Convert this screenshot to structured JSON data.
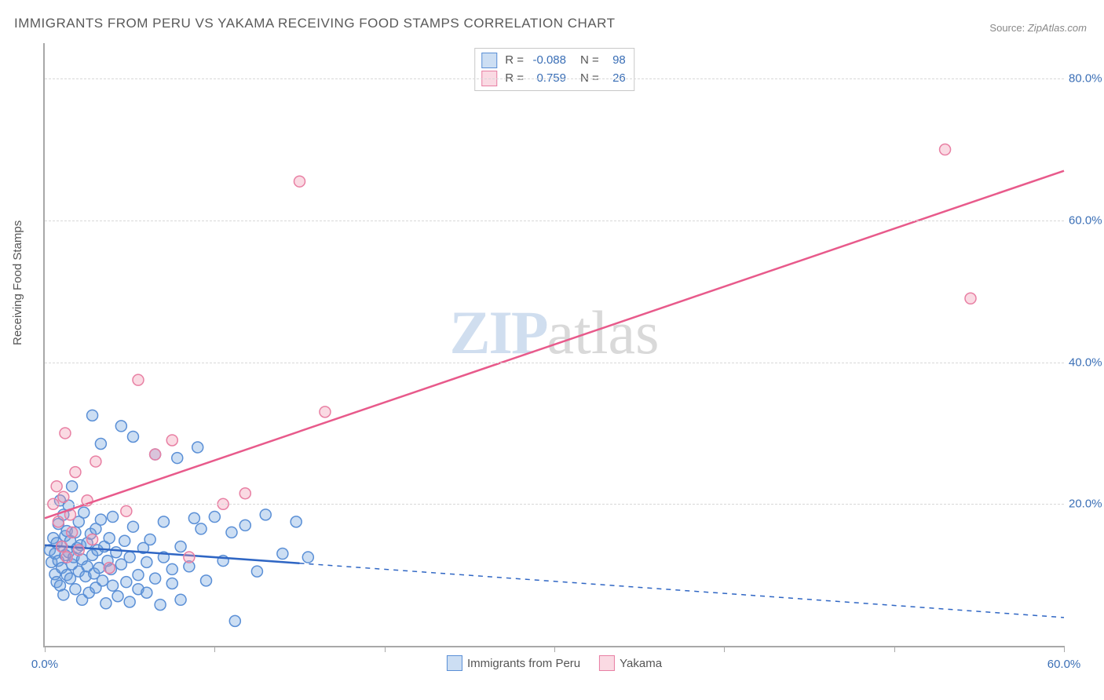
{
  "title": "IMMIGRANTS FROM PERU VS YAKAMA RECEIVING FOOD STAMPS CORRELATION CHART",
  "source_label": "Source:",
  "source_value": "ZipAtlas.com",
  "ylabel": "Receiving Food Stamps",
  "watermark": {
    "part1": "ZIP",
    "part2": "atlas"
  },
  "chart": {
    "type": "scatter",
    "background_color": "#ffffff",
    "grid_color": "#d8d8d8",
    "axis_color": "#a8a8a8",
    "tick_label_color": "#3b6fb6",
    "xlim": [
      0,
      60
    ],
    "ylim": [
      0,
      85
    ],
    "x_ticks": [
      0,
      10,
      20,
      30,
      40,
      50,
      60
    ],
    "x_tick_labels": [
      "0.0%",
      "",
      "",
      "",
      "",
      "",
      "60.0%"
    ],
    "y_ticks": [
      20,
      40,
      60,
      80
    ],
    "y_tick_labels": [
      "20.0%",
      "40.0%",
      "60.0%",
      "80.0%"
    ],
    "marker_radius": 7,
    "marker_stroke_width": 1.5,
    "line_width": 2.5,
    "series": [
      {
        "name": "Immigrants from Peru",
        "abbrev": "peru",
        "color_fill": "rgba(110,160,220,0.35)",
        "color_stroke": "#5a8fd6",
        "line_color": "#2f66c4",
        "r": "-0.088",
        "n": "98",
        "trend": {
          "x1": 0,
          "y1": 14.2,
          "x2": 60,
          "y2": 4.0,
          "solid_until_x": 15
        },
        "points": [
          [
            0.3,
            13.5
          ],
          [
            0.4,
            11.8
          ],
          [
            0.5,
            15.2
          ],
          [
            0.6,
            10.1
          ],
          [
            0.6,
            13.0
          ],
          [
            0.7,
            9.0
          ],
          [
            0.7,
            14.5
          ],
          [
            0.8,
            17.2
          ],
          [
            0.8,
            12.0
          ],
          [
            0.9,
            20.5
          ],
          [
            0.9,
            8.5
          ],
          [
            1.0,
            14.0
          ],
          [
            1.0,
            11.0
          ],
          [
            1.1,
            18.5
          ],
          [
            1.1,
            7.2
          ],
          [
            1.2,
            15.5
          ],
          [
            1.2,
            12.8
          ],
          [
            1.3,
            10.0
          ],
          [
            1.3,
            16.2
          ],
          [
            1.4,
            13.2
          ],
          [
            1.4,
            19.8
          ],
          [
            1.5,
            9.5
          ],
          [
            1.5,
            14.8
          ],
          [
            1.6,
            11.5
          ],
          [
            1.6,
            22.5
          ],
          [
            1.7,
            12.5
          ],
          [
            1.8,
            16.0
          ],
          [
            1.8,
            8.0
          ],
          [
            1.9,
            13.8
          ],
          [
            2.0,
            10.5
          ],
          [
            2.0,
            17.5
          ],
          [
            2.1,
            14.2
          ],
          [
            2.2,
            6.5
          ],
          [
            2.2,
            12.2
          ],
          [
            2.3,
            18.8
          ],
          [
            2.4,
            9.8
          ],
          [
            2.5,
            14.5
          ],
          [
            2.5,
            11.2
          ],
          [
            2.6,
            7.5
          ],
          [
            2.7,
            15.8
          ],
          [
            2.8,
            12.8
          ],
          [
            2.8,
            32.5
          ],
          [
            2.9,
            10.2
          ],
          [
            3.0,
            16.5
          ],
          [
            3.0,
            8.2
          ],
          [
            3.1,
            13.5
          ],
          [
            3.2,
            11.0
          ],
          [
            3.3,
            17.8
          ],
          [
            3.3,
            28.5
          ],
          [
            3.4,
            9.2
          ],
          [
            3.5,
            14.0
          ],
          [
            3.6,
            6.0
          ],
          [
            3.7,
            12.0
          ],
          [
            3.8,
            15.2
          ],
          [
            3.9,
            10.8
          ],
          [
            4.0,
            8.5
          ],
          [
            4.0,
            18.2
          ],
          [
            4.2,
            13.2
          ],
          [
            4.3,
            7.0
          ],
          [
            4.5,
            11.5
          ],
          [
            4.5,
            31.0
          ],
          [
            4.7,
            14.8
          ],
          [
            4.8,
            9.0
          ],
          [
            5.0,
            6.2
          ],
          [
            5.0,
            12.5
          ],
          [
            5.2,
            16.8
          ],
          [
            5.2,
            29.5
          ],
          [
            5.5,
            10.0
          ],
          [
            5.5,
            8.0
          ],
          [
            5.8,
            13.8
          ],
          [
            6.0,
            7.5
          ],
          [
            6.0,
            11.8
          ],
          [
            6.2,
            15.0
          ],
          [
            6.5,
            9.5
          ],
          [
            6.5,
            27.0
          ],
          [
            6.8,
            5.8
          ],
          [
            7.0,
            12.5
          ],
          [
            7.0,
            17.5
          ],
          [
            7.5,
            10.8
          ],
          [
            7.5,
            8.8
          ],
          [
            7.8,
            26.5
          ],
          [
            8.0,
            14.0
          ],
          [
            8.0,
            6.5
          ],
          [
            8.5,
            11.2
          ],
          [
            8.8,
            18.0
          ],
          [
            9.0,
            28.0
          ],
          [
            9.2,
            16.5
          ],
          [
            9.5,
            9.2
          ],
          [
            10.0,
            18.2
          ],
          [
            10.5,
            12.0
          ],
          [
            11.0,
            16.0
          ],
          [
            11.2,
            3.5
          ],
          [
            11.8,
            17.0
          ],
          [
            12.5,
            10.5
          ],
          [
            13.0,
            18.5
          ],
          [
            14.0,
            13.0
          ],
          [
            14.8,
            17.5
          ],
          [
            15.5,
            12.5
          ]
        ]
      },
      {
        "name": "Yakama",
        "abbrev": "yakama",
        "color_fill": "rgba(240,150,175,0.35)",
        "color_stroke": "#e87fa3",
        "line_color": "#e85a8b",
        "r": "0.759",
        "n": "26",
        "trend": {
          "x1": 0,
          "y1": 18.0,
          "x2": 60,
          "y2": 67.0,
          "solid_until_x": 60
        },
        "points": [
          [
            0.5,
            20.0
          ],
          [
            0.7,
            22.5
          ],
          [
            0.8,
            17.5
          ],
          [
            1.0,
            14.0
          ],
          [
            1.1,
            21.0
          ],
          [
            1.2,
            30.0
          ],
          [
            1.3,
            12.5
          ],
          [
            1.5,
            18.5
          ],
          [
            1.6,
            16.0
          ],
          [
            1.8,
            24.5
          ],
          [
            2.0,
            13.5
          ],
          [
            2.5,
            20.5
          ],
          [
            2.8,
            15.0
          ],
          [
            3.0,
            26.0
          ],
          [
            3.8,
            11.0
          ],
          [
            4.8,
            19.0
          ],
          [
            5.5,
            37.5
          ],
          [
            6.5,
            27.0
          ],
          [
            7.5,
            29.0
          ],
          [
            8.5,
            12.5
          ],
          [
            10.5,
            20.0
          ],
          [
            11.8,
            21.5
          ],
          [
            15.0,
            65.5
          ],
          [
            16.5,
            33.0
          ],
          [
            53.0,
            70.0
          ],
          [
            54.5,
            49.0
          ]
        ]
      }
    ]
  },
  "legend_top": {
    "r_label": "R =",
    "n_label": "N ="
  },
  "legend_bottom": {
    "series1": "Immigrants from Peru",
    "series2": "Yakama"
  }
}
